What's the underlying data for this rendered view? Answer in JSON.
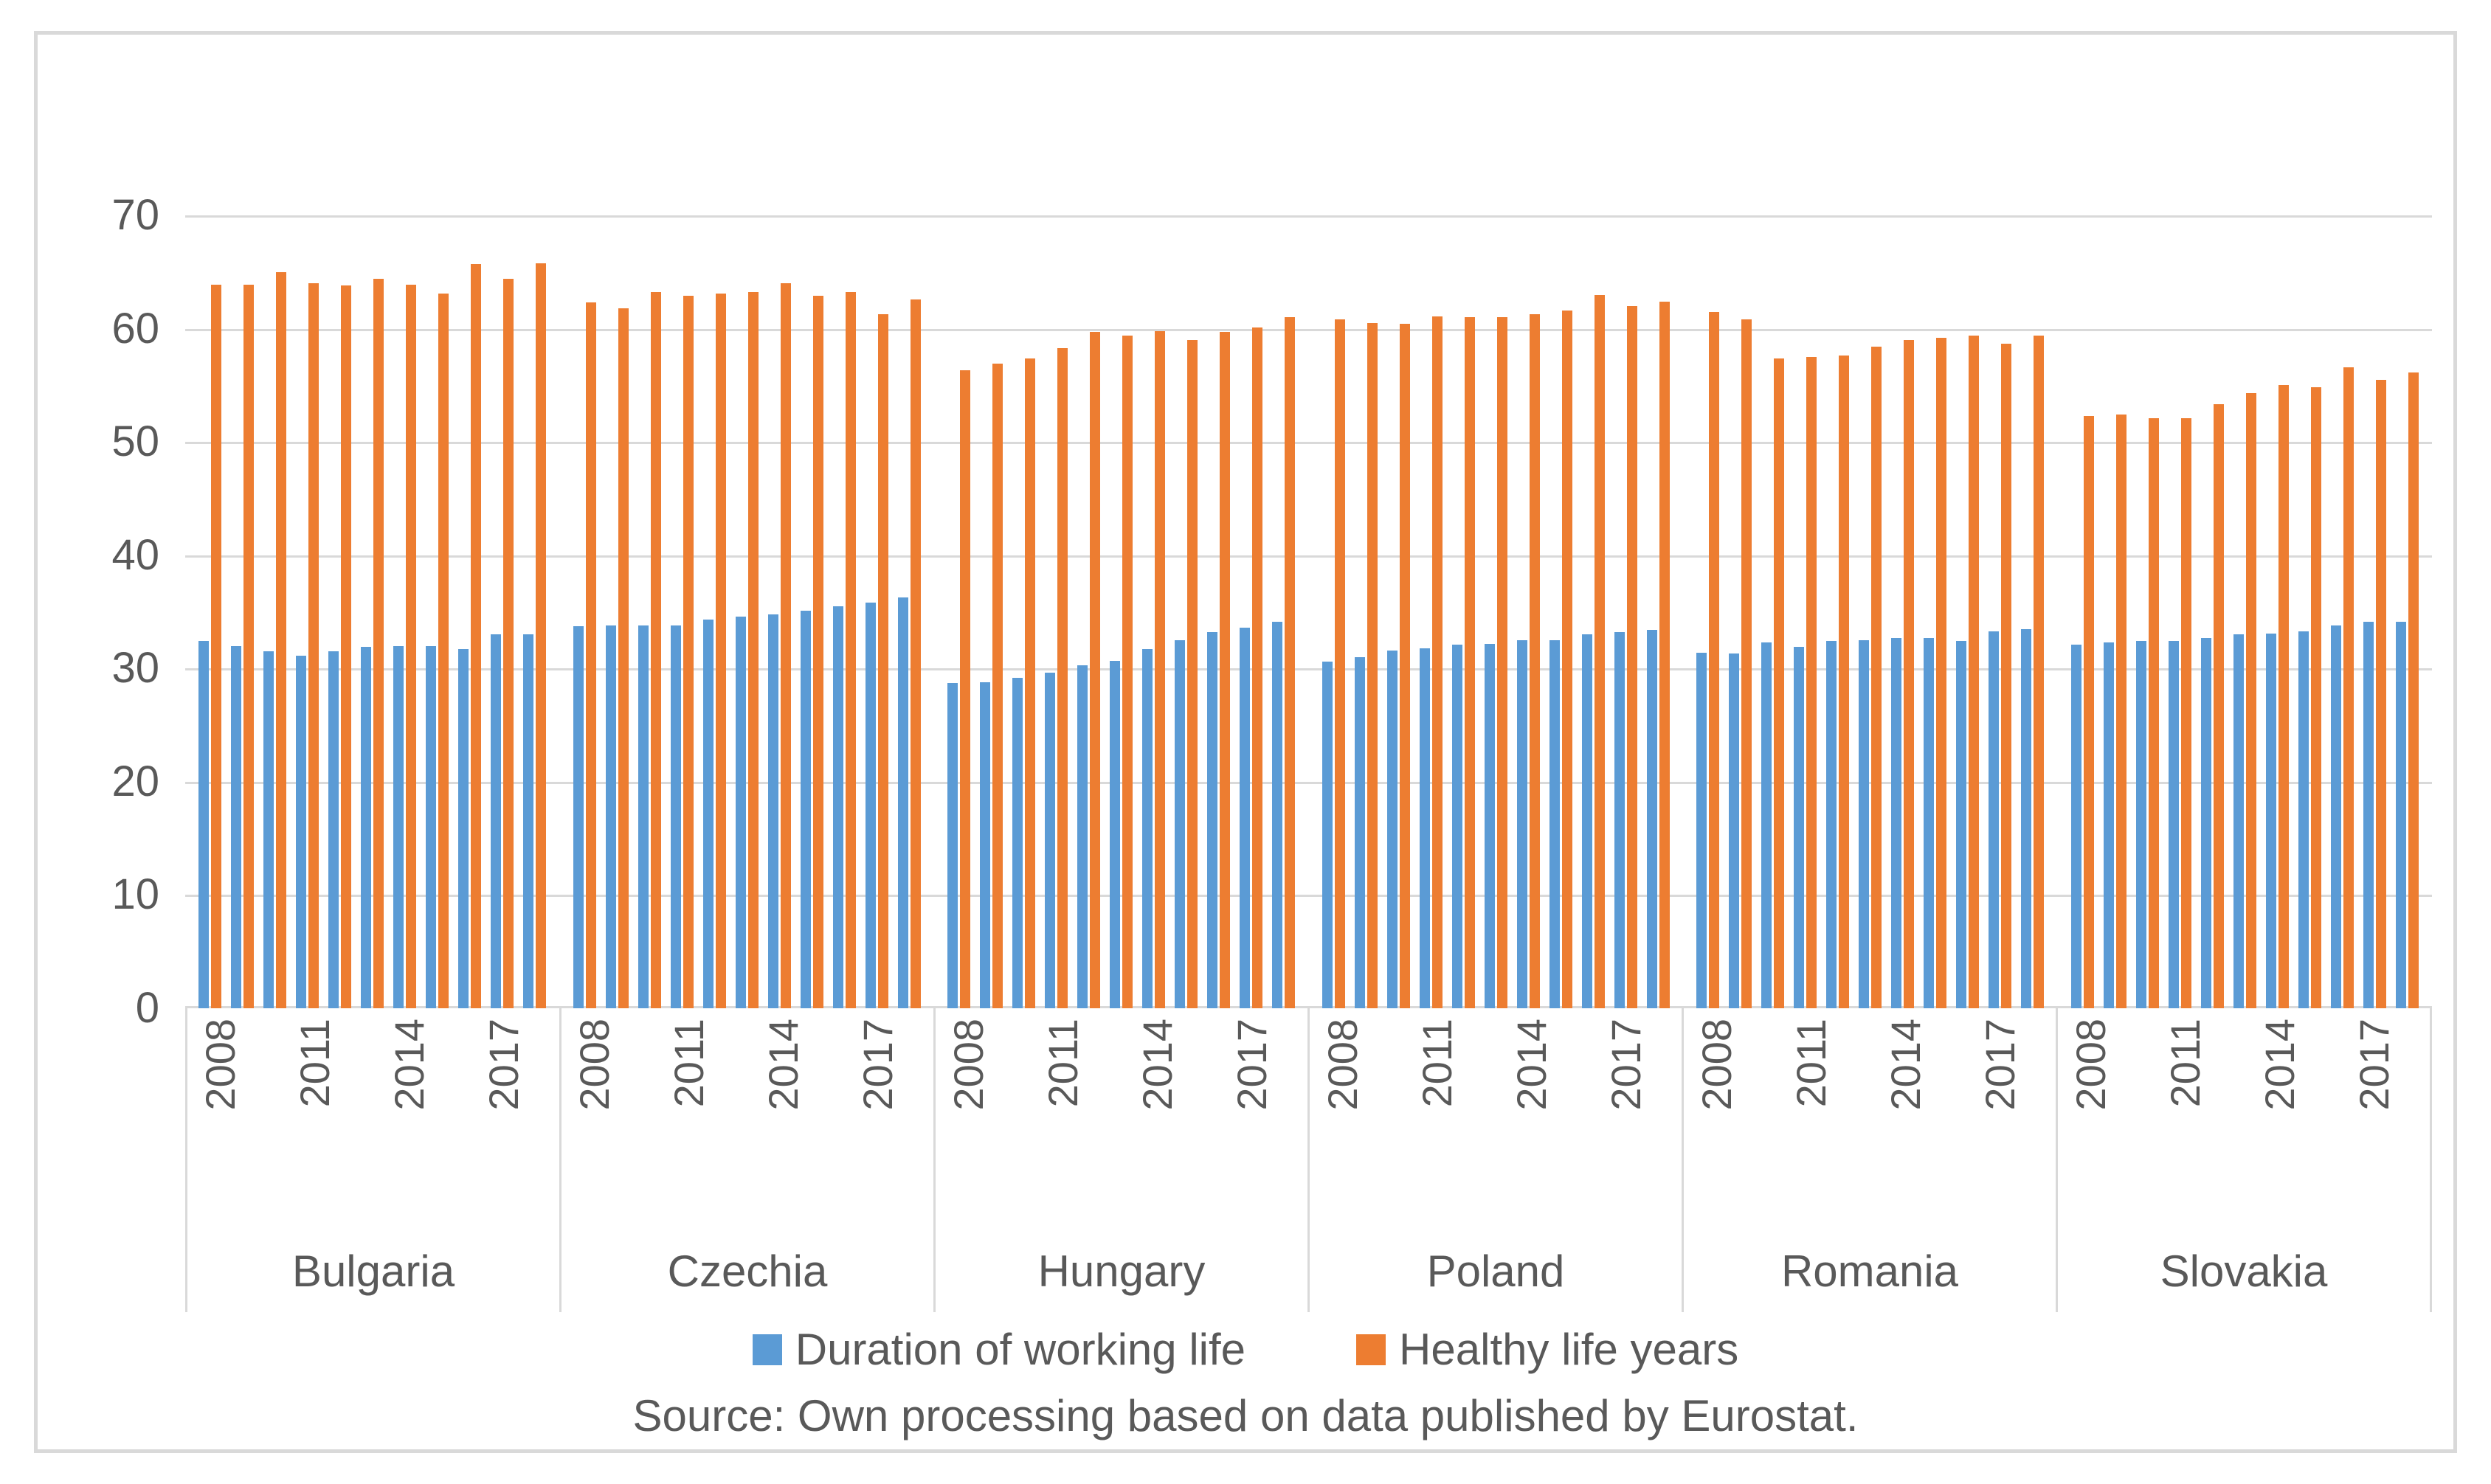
{
  "legend": {
    "items": [
      {
        "label": "Duration of working life",
        "color": "#5b9bd5"
      },
      {
        "label": "Healthy life years",
        "color": "#ed7d31"
      }
    ]
  },
  "source_text": "Source: Own processing based on data published by Eurostat.",
  "colors": {
    "duration_bar": "#5b9bd5",
    "healthy_bar": "#ed7d31",
    "gridline": "#d9d9d9",
    "axis_text": "#595959",
    "frame_border": "#d9d9d9"
  },
  "chart_data": {
    "type": "bar",
    "title": "",
    "xlabel": "",
    "ylabel": "",
    "ylim": [
      0,
      70
    ],
    "yticks": [
      0,
      10,
      20,
      30,
      40,
      50,
      60,
      70
    ],
    "grid": true,
    "legend_position": "bottom",
    "years": [
      2008,
      2009,
      2010,
      2011,
      2012,
      2013,
      2014,
      2015,
      2016,
      2017,
      2018
    ],
    "x_tick_label_indices": [
      0,
      3,
      6,
      9
    ],
    "x_tick_labels_shown": [
      "2008",
      "2011",
      "2014",
      "2017"
    ],
    "series_names": [
      "Duration of working life",
      "Healthy life years"
    ],
    "groups": [
      {
        "country": "Bulgaria",
        "duration_of_working_life": [
          32.4,
          32.0,
          31.5,
          31.1,
          31.5,
          31.9,
          32.0,
          32.0,
          31.7,
          33.0,
          33.0
        ],
        "healthy_life_years": [
          63.9,
          63.9,
          65.0,
          64.0,
          63.8,
          64.4,
          63.9,
          63.1,
          65.7,
          64.4,
          65.8
        ]
      },
      {
        "country": "Czechia",
        "duration_of_working_life": [
          33.7,
          33.8,
          33.8,
          33.8,
          34.3,
          34.6,
          34.8,
          35.1,
          35.5,
          35.8,
          36.3
        ],
        "healthy_life_years": [
          62.3,
          61.8,
          63.2,
          62.9,
          63.1,
          63.2,
          64.0,
          62.9,
          63.2,
          61.3,
          62.6
        ]
      },
      {
        "country": "Hungary",
        "duration_of_working_life": [
          28.7,
          28.8,
          29.2,
          29.6,
          30.3,
          30.7,
          31.7,
          32.5,
          33.2,
          33.6,
          34.1
        ],
        "healthy_life_years": [
          56.3,
          56.9,
          57.4,
          58.3,
          59.7,
          59.4,
          59.8,
          59.0,
          59.7,
          60.1,
          61.0
        ]
      },
      {
        "country": "Poland",
        "duration_of_working_life": [
          30.6,
          31.0,
          31.6,
          31.8,
          32.1,
          32.2,
          32.5,
          32.5,
          33.0,
          33.2,
          33.4
        ],
        "healthy_life_years": [
          60.8,
          60.5,
          60.4,
          61.1,
          61.0,
          61.0,
          61.3,
          61.6,
          63.0,
          62.0,
          62.4
        ]
      },
      {
        "country": "Romania",
        "duration_of_working_life": [
          31.4,
          31.3,
          32.3,
          31.9,
          32.4,
          32.5,
          32.7,
          32.7,
          32.4,
          33.3,
          33.5
        ],
        "healthy_life_years": [
          61.5,
          60.8,
          57.4,
          57.5,
          57.6,
          58.4,
          59.0,
          59.2,
          59.4,
          58.7,
          59.4
        ]
      },
      {
        "country": "Slovakia",
        "duration_of_working_life": [
          32.1,
          32.3,
          32.4,
          32.4,
          32.7,
          33.0,
          33.1,
          33.3,
          33.8,
          34.1,
          34.1
        ],
        "healthy_life_years": [
          52.3,
          52.4,
          52.1,
          52.1,
          53.3,
          54.3,
          55.0,
          54.8,
          56.6,
          55.5,
          56.1
        ]
      }
    ]
  }
}
